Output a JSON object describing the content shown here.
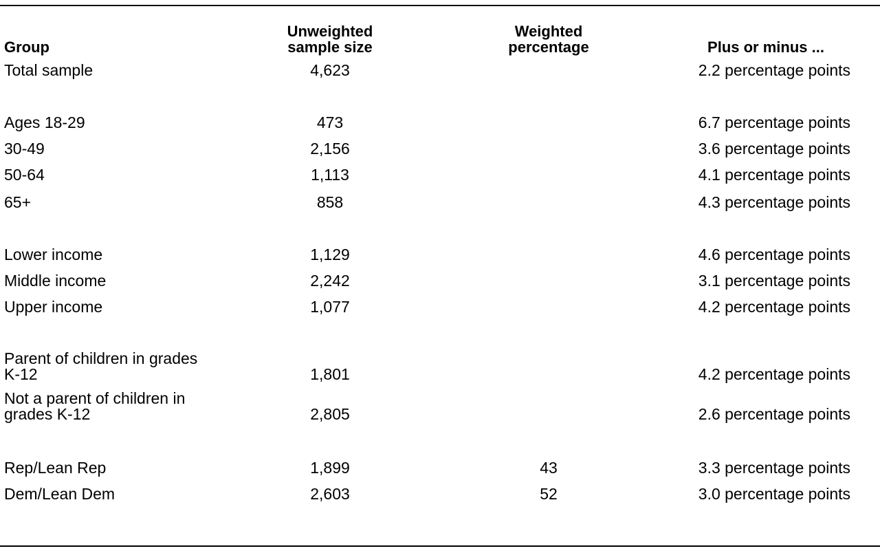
{
  "headers": {
    "group": "Group",
    "sample_size_line1": "Unweighted",
    "sample_size_line2": "sample size",
    "weighted_line1": "Weighted",
    "weighted_line2": "percentage",
    "margin": "Plus or minus ..."
  },
  "rows": [
    {
      "group": "Total sample",
      "n": "4,623",
      "weighted": "",
      "margin": "2.2 percentage points"
    },
    {
      "group": "Ages 18-29",
      "n": "473",
      "weighted": "",
      "margin": "6.7 percentage points"
    },
    {
      "group": "30-49",
      "n": "2,156",
      "weighted": "",
      "margin": "3.6 percentage points"
    },
    {
      "group": "50-64",
      "n": "1,113",
      "weighted": "",
      "margin": "4.1 percentage points"
    },
    {
      "group": "65+",
      "n": "858",
      "weighted": "",
      "margin": "4.3 percentage points"
    },
    {
      "group": "Lower income",
      "n": "1,129",
      "weighted": "",
      "margin": "4.6 percentage points"
    },
    {
      "group": "Middle income",
      "n": "2,242",
      "weighted": "",
      "margin": "3.1 percentage points"
    },
    {
      "group": "Upper income",
      "n": "1,077",
      "weighted": "",
      "margin": "4.2 percentage points"
    },
    {
      "group_line1": "Parent of children in grades",
      "group_line2": "K-12",
      "n": "1,801",
      "weighted": "",
      "margin": "4.2 percentage points"
    },
    {
      "group_line1": "Not a parent of children in",
      "group_line2": "grades K-12",
      "n": "2,805",
      "weighted": "",
      "margin": "2.6 percentage points"
    },
    {
      "group": "Rep/Lean Rep",
      "n": "1,899",
      "weighted": "43",
      "margin": "3.3 percentage points"
    },
    {
      "group": "Dem/Lean Dem",
      "n": "2,603",
      "weighted": "52",
      "margin": "3.0 percentage points"
    }
  ]
}
